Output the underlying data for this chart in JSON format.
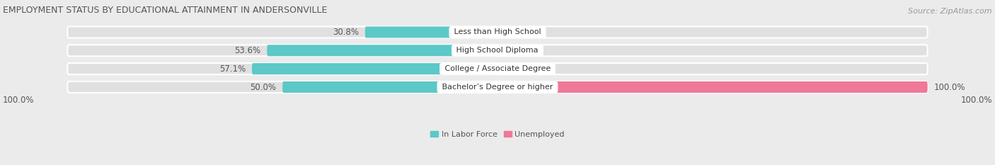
{
  "title": "EMPLOYMENT STATUS BY EDUCATIONAL ATTAINMENT IN ANDERSONVILLE",
  "source": "Source: ZipAtlas.com",
  "categories": [
    "Less than High School",
    "High School Diploma",
    "College / Associate Degree",
    "Bachelor’s Degree or higher"
  ],
  "labor_force_values": [
    30.8,
    53.6,
    57.1,
    50.0
  ],
  "unemployed_values": [
    0.0,
    0.0,
    0.0,
    100.0
  ],
  "labor_force_color": "#5CC8C8",
  "unemployed_color": "#F07898",
  "background_color": "#EBEBEB",
  "bar_bg_color": "#E0E0E0",
  "title_fontsize": 9,
  "source_fontsize": 8,
  "value_fontsize": 8.5,
  "cat_fontsize": 8,
  "legend_labels": [
    "In Labor Force",
    "Unemployed"
  ],
  "legend_color_lf": "#5CC8C8",
  "legend_color_unemp": "#F07898",
  "axis_label_left": "100.0%",
  "axis_label_right": "100.0%"
}
